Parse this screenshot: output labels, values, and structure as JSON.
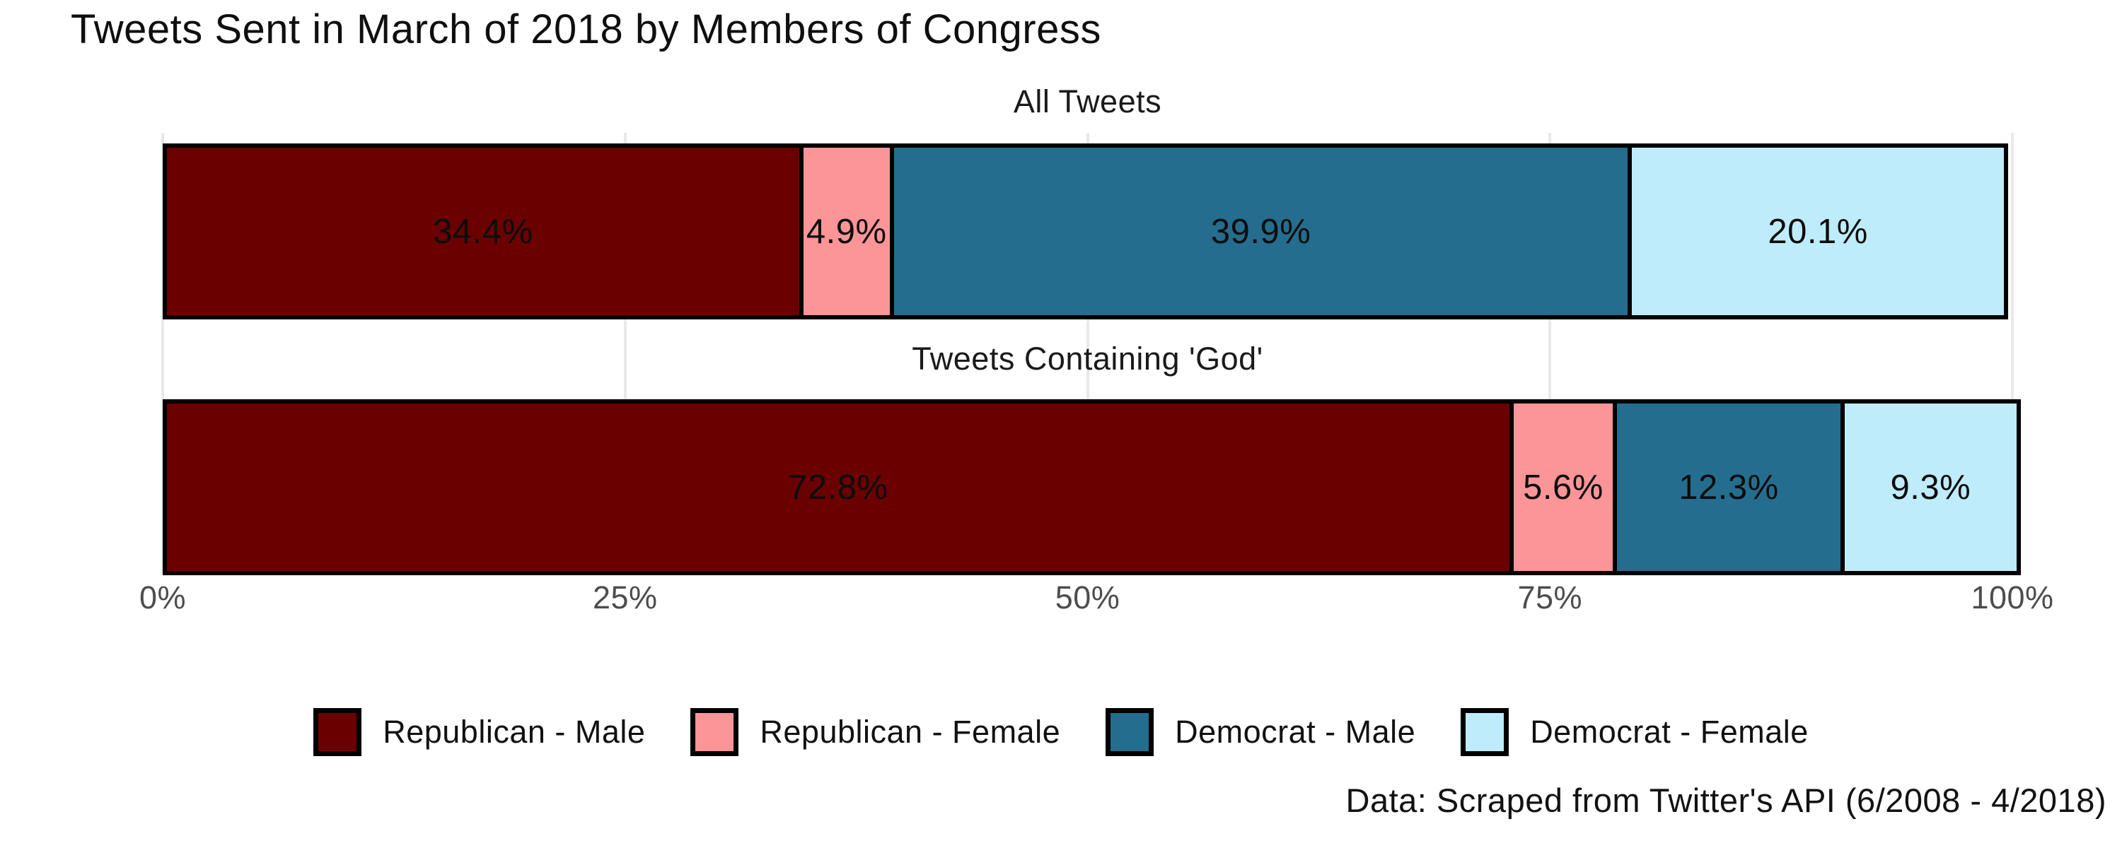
{
  "header": {
    "title": "Tweets Sent in March of 2018 by Members of Congress"
  },
  "caption": "Data: Scraped from Twitter's API (6/2008 - 4/2018)",
  "chart_data": {
    "type": "bar",
    "orientation": "horizontal-stacked",
    "title": "Tweets Sent in March of 2018 by Members of Congress",
    "categories": [
      "All Tweets",
      "Tweets Containing 'God'"
    ],
    "series": [
      {
        "name": "Republican - Male",
        "color": "#6b0000",
        "values": [
          34.4,
          72.8
        ]
      },
      {
        "name": "Republican - Female",
        "color": "#fc9598",
        "values": [
          4.9,
          5.6
        ]
      },
      {
        "name": "Democrat - Male",
        "color": "#256d8e",
        "values": [
          39.9,
          12.3
        ]
      },
      {
        "name": "Democrat - Female",
        "color": "#bfecfb",
        "values": [
          20.1,
          9.3
        ]
      }
    ],
    "x_ticks": [
      "0%",
      "25%",
      "50%",
      "75%",
      "100%"
    ],
    "x_ticks_pct": [
      0,
      25,
      50,
      75,
      100
    ],
    "xlim": [
      0,
      100
    ],
    "grid": true,
    "legend_position": "bottom",
    "value_label_format": "percent",
    "bar_border_color": "#000000",
    "gridline_color": "#e9e9e9"
  }
}
